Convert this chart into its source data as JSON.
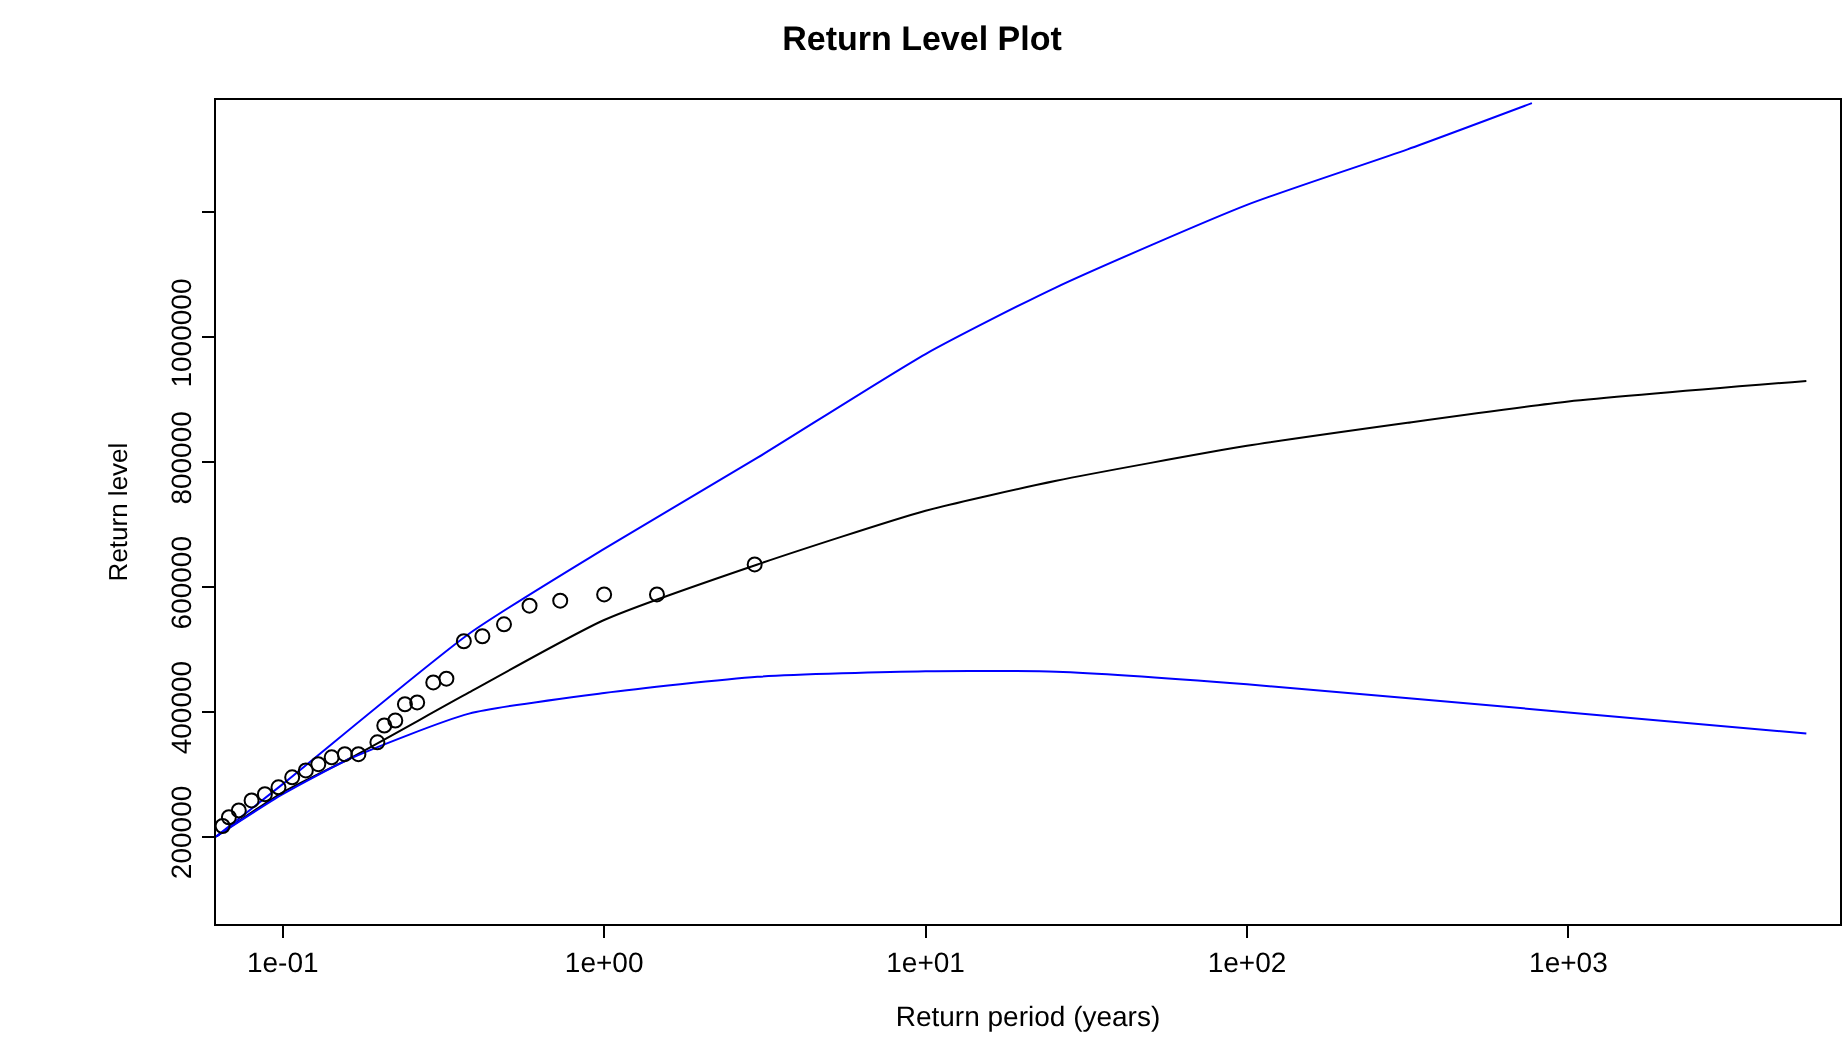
{
  "chart_data": {
    "type": "line",
    "title": "Return Level Plot",
    "xlabel": "Return period (years)",
    "ylabel": "Return level",
    "log": "x",
    "xlim": [
      0.062,
      7000
    ],
    "xticks": [
      {
        "value": 0.1,
        "label": "1e-01"
      },
      {
        "value": 1,
        "label": "1e+00"
      },
      {
        "value": 10,
        "label": "1e+01"
      },
      {
        "value": 100,
        "label": "1e+02"
      },
      {
        "value": 1000,
        "label": "1e+03"
      }
    ],
    "ylim": [
      60000,
      1380000
    ],
    "yticks": [
      200000,
      400000,
      600000,
      800000,
      1000000,
      {
        "value": 1200000,
        "label": null
      }
    ],
    "series": [
      {
        "color": "#000000",
        "marker": "none",
        "line_style": "solid",
        "x": [
          0.062,
          0.1,
          0.164,
          0.38,
          1,
          3,
          10,
          25.5,
          100,
          316,
          1000,
          5500
        ],
        "values": [
          200000,
          271000,
          327000,
          431000,
          547000,
          636000,
          722000,
          770000,
          826000,
          863000,
          897000,
          930000
        ]
      },
      {
        "color": "#0000ff",
        "marker": "none",
        "line_style": "solid",
        "x": [
          0.062,
          0.1,
          0.38,
          1,
          3,
          10,
          25.5,
          100,
          316,
          770
        ],
        "values": [
          200000,
          284000,
          525000,
          661000,
          807000,
          973000,
          1080000,
          1212000,
          1301000,
          1375000
        ]
      },
      {
        "color": "#0000ff",
        "marker": "none",
        "line_style": "solid",
        "x": [
          0.062,
          0.1,
          0.164,
          0.38,
          1,
          3,
          10,
          25.5,
          100,
          1000,
          5500
        ],
        "values": [
          200000,
          268000,
          326000,
          397000,
          430000,
          456000,
          465000,
          464000,
          444000,
          399000,
          365000
        ]
      },
      {
        "type": "scatter",
        "color": "#000000",
        "marker": "circle",
        "x": [
          0.065,
          0.068,
          0.073,
          0.08,
          0.088,
          0.097,
          0.107,
          0.118,
          0.129,
          0.142,
          0.156,
          0.172,
          0.197,
          0.207,
          0.224,
          0.24,
          0.262,
          0.294,
          0.323,
          0.366,
          0.418,
          0.488,
          0.586,
          0.73,
          1.0,
          1.46,
          2.94
        ],
        "values": [
          217000,
          231000,
          242000,
          258000,
          268000,
          279000,
          295000,
          306000,
          316000,
          327000,
          332000,
          332000,
          351000,
          378000,
          386000,
          412000,
          415000,
          447000,
          453000,
          513000,
          521000,
          540000,
          570000,
          578000,
          588000,
          588000,
          636000
        ]
      }
    ]
  }
}
